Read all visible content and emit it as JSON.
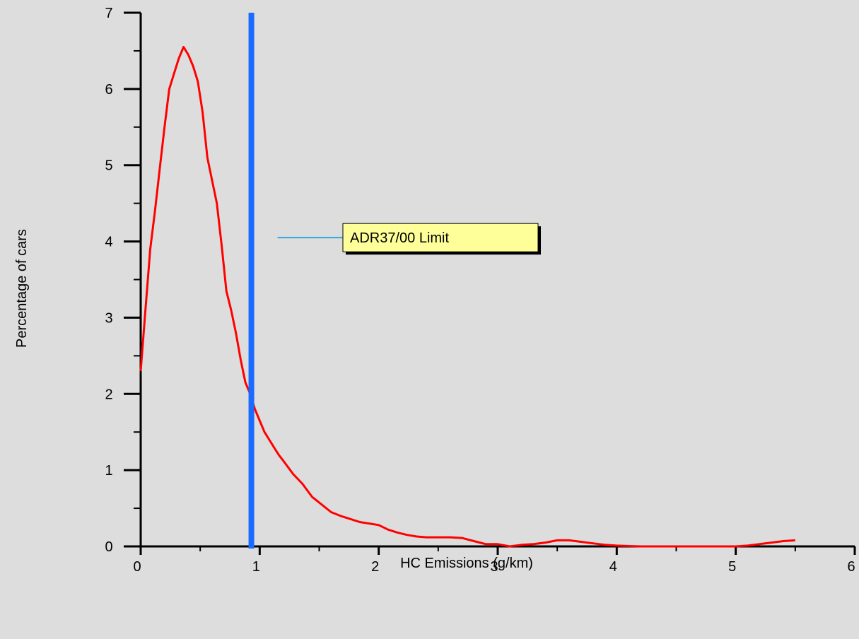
{
  "chart_data": {
    "type": "line",
    "title": "",
    "xlabel": "HC Emissions (g/km)",
    "ylabel": "Percentage of cars",
    "xlim": [
      0,
      6
    ],
    "ylim": [
      0,
      7
    ],
    "x_ticks": [
      0,
      1,
      2,
      3,
      4,
      5,
      6
    ],
    "y_ticks": [
      0,
      1,
      2,
      3,
      4,
      5,
      6,
      7
    ],
    "grid": false,
    "legend": "none",
    "series": [
      {
        "color": "#ff0000",
        "x": [
          0,
          0.04,
          0.08,
          0.12,
          0.16,
          0.2,
          0.24,
          0.28,
          0.32,
          0.36,
          0.4,
          0.44,
          0.48,
          0.52,
          0.56,
          0.6,
          0.64,
          0.68,
          0.72,
          0.76,
          0.8,
          0.84,
          0.88,
          0.92,
          0.96,
          1.0,
          1.04,
          1.08,
          1.12,
          1.16,
          1.2,
          1.28,
          1.36,
          1.44,
          1.52,
          1.6,
          1.68,
          1.76,
          1.84,
          1.92,
          2.0,
          2.08,
          2.16,
          2.24,
          2.32,
          2.4,
          2.5,
          2.6,
          2.7,
          2.8,
          2.9,
          3.0,
          3.1,
          3.2,
          3.3,
          3.4,
          3.5,
          3.6,
          3.7,
          3.8,
          3.9,
          4.0,
          4.2,
          4.4,
          4.6,
          4.8,
          5.0,
          5.1,
          5.2,
          5.3,
          5.4,
          5.5
        ],
        "y": [
          2.3,
          3.1,
          3.9,
          4.4,
          4.95,
          5.5,
          6.0,
          6.2,
          6.4,
          6.55,
          6.45,
          6.3,
          6.1,
          5.7,
          5.1,
          4.8,
          4.5,
          3.95,
          3.35,
          3.1,
          2.8,
          2.45,
          2.15,
          2.0,
          1.8,
          1.65,
          1.5,
          1.4,
          1.3,
          1.2,
          1.12,
          0.95,
          0.82,
          0.65,
          0.55,
          0.45,
          0.4,
          0.36,
          0.32,
          0.3,
          0.28,
          0.22,
          0.18,
          0.15,
          0.13,
          0.12,
          0.12,
          0.12,
          0.11,
          0.07,
          0.03,
          0.03,
          0.0,
          0.02,
          0.03,
          0.05,
          0.08,
          0.08,
          0.06,
          0.04,
          0.02,
          0.01,
          0.0,
          0.0,
          0.0,
          0.0,
          0.0,
          0.01,
          0.03,
          0.05,
          0.07,
          0.08
        ]
      }
    ],
    "reference_line": {
      "x": 0.93,
      "color": "#1a6bff"
    },
    "annotation": {
      "text": "ADR37/00 Limit",
      "x": 1.8,
      "y": 4.05,
      "line_to_x": 1.15,
      "box_color": "#ffff99",
      "line_color": "#29a8e0"
    }
  }
}
